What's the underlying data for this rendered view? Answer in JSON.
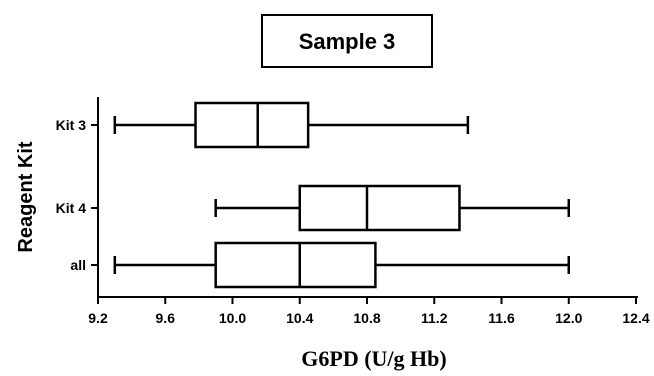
{
  "chart_data": {
    "type": "boxplot",
    "title": "Sample 3",
    "xlabel": "G6PD (U/g Hb)",
    "ylabel": "Reagent Kit",
    "xlim": [
      9.2,
      12.4
    ],
    "x_ticks": [
      "9.2",
      "9.6",
      "10.0",
      "10.4",
      "10.8",
      "11.2",
      "11.6",
      "12.0",
      "12.4"
    ],
    "categories": [
      "Kit 3",
      "Kit 4",
      "all"
    ],
    "boxes": [
      {
        "label": "Kit 3",
        "min": 9.3,
        "q1": 9.78,
        "median": 10.15,
        "q3": 10.45,
        "max": 11.4
      },
      {
        "label": "Kit 4",
        "min": 9.9,
        "q1": 10.4,
        "median": 10.8,
        "q3": 11.35,
        "max": 12.0
      },
      {
        "label": "all",
        "min": 9.3,
        "q1": 9.9,
        "median": 10.4,
        "q3": 10.85,
        "max": 12.0
      }
    ]
  }
}
